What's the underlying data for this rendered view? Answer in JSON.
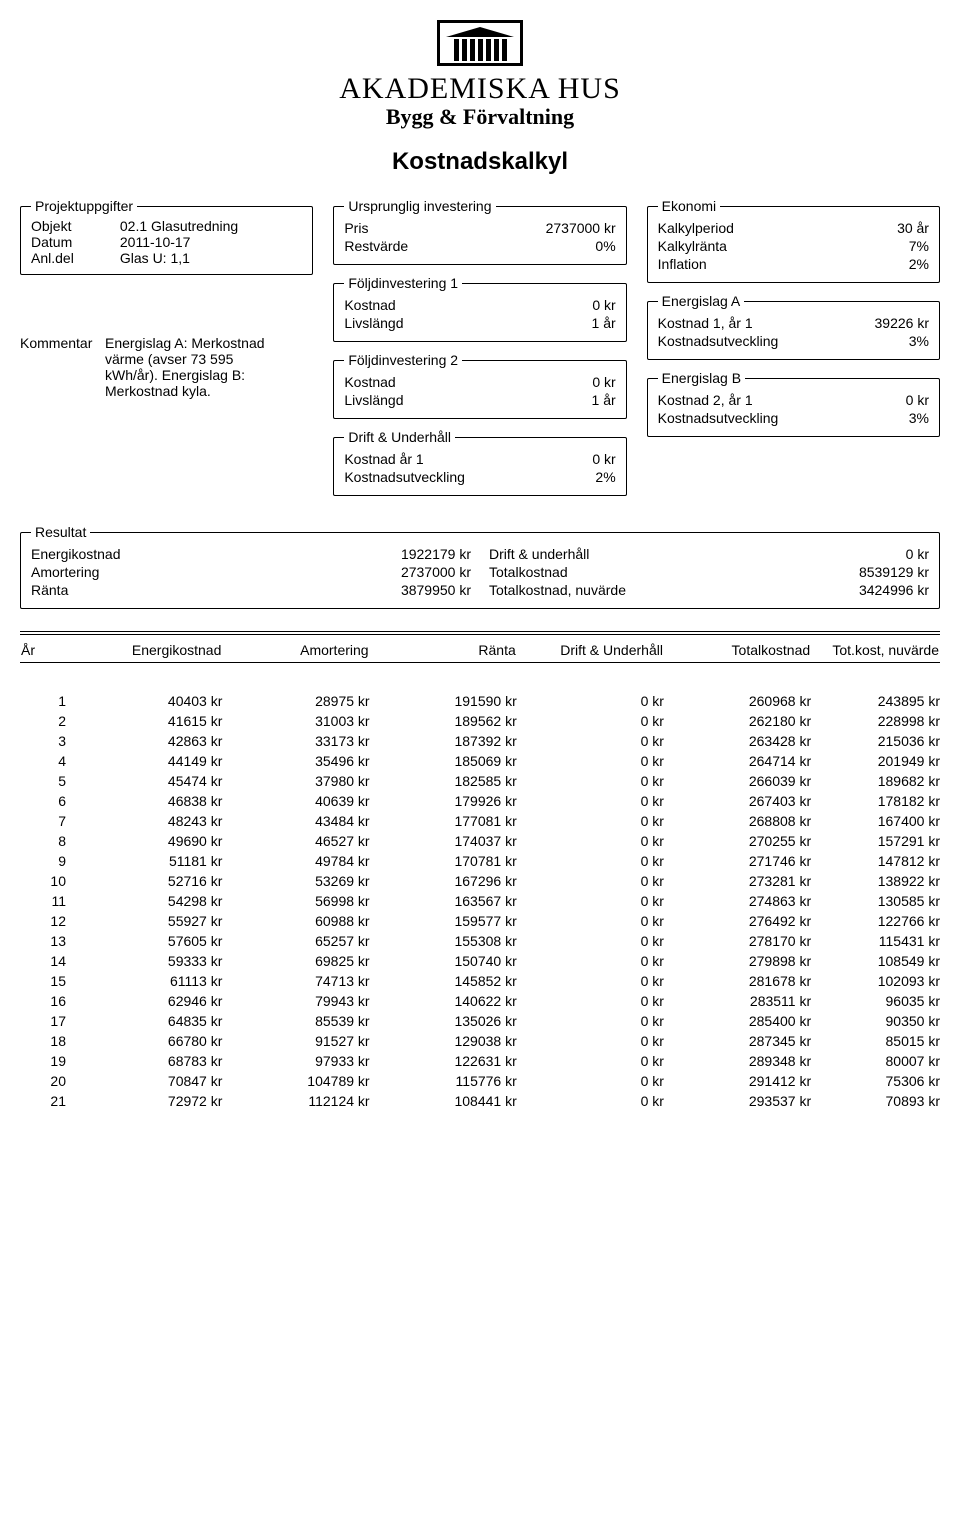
{
  "brand": {
    "name": "AKADEMISKA HUS",
    "sub": "Bygg & Förvaltning"
  },
  "title": "Kostnadskalkyl",
  "projekt": {
    "legend": "Projektuppgifter",
    "objekt_label": "Objekt",
    "objekt": "02.1 Glasutredning",
    "datum_label": "Datum",
    "datum": "2011-10-17",
    "anldel_label": "Anl.del",
    "anldel": "Glas U: 1,1",
    "kommentar_label": "Kommentar",
    "kommentar_l1": "Energislag A: Merkostnad",
    "kommentar_l2": "värme (avser 73 595",
    "kommentar_l3": "kWh/år). Energislag B:",
    "kommentar_l4": "Merkostnad kyla."
  },
  "invest": {
    "legend": "Ursprunglig investering",
    "pris_label": "Pris",
    "pris": "2737000 kr",
    "rest_label": "Restvärde",
    "rest": "0%",
    "f1_legend": "Följdinvestering 1",
    "f1_kostnad_label": "Kostnad",
    "f1_kostnad": "0 kr",
    "f1_livs_label": "Livslängd",
    "f1_livs": "1 år",
    "f2_legend": "Följdinvestering 2",
    "f2_kostnad_label": "Kostnad",
    "f2_kostnad": "0 kr",
    "f2_livs_label": "Livslängd",
    "f2_livs": "1 år",
    "du_legend": "Drift & Underhåll",
    "du_k1_label": "Kostnad år 1",
    "du_k1": "0 kr",
    "du_utv_label": "Kostnadsutveckling",
    "du_utv": "2%"
  },
  "ekonomi": {
    "legend": "Ekonomi",
    "kp_label": "Kalkylperiod",
    "kp": "30 år",
    "kr_label": "Kalkylränta",
    "kr": "7%",
    "inf_label": "Inflation",
    "inf": "2%",
    "ea_legend": "Energislag A",
    "ea_k_label": "Kostnad 1, år 1",
    "ea_k": "39226 kr",
    "ea_u_label": "Kostnadsutveckling",
    "ea_u": "3%",
    "eb_legend": "Energislag B",
    "eb_k_label": "Kostnad 2, år 1",
    "eb_k": "0 kr",
    "eb_u_label": "Kostnadsutveckling",
    "eb_u": "3%"
  },
  "resultat": {
    "legend": "Resultat",
    "en_label": "Energikostnad",
    "en": "1922179 kr",
    "am_label": "Amortering",
    "am": "2737000 kr",
    "ra_label": "Ränta",
    "ra": "3879950 kr",
    "du_label": "Drift & underhåll",
    "du": "0 kr",
    "tk_label": "Totalkostnad",
    "tk": "8539129 kr",
    "tn_label": "Totalkostnad, nuvärde",
    "tn": "3424996 kr"
  },
  "table": {
    "headers": {
      "year": "År",
      "en": "Energikostnad",
      "am": "Amortering",
      "ra": "Ränta",
      "du": "Drift & Underhåll",
      "tk": "Totalkostnad",
      "nv": "Tot.kost, nuvärde"
    },
    "rows": [
      {
        "y": "1",
        "en": "40403 kr",
        "am": "28975 kr",
        "ra": "191590 kr",
        "du": "0 kr",
        "tk": "260968 kr",
        "nv": "243895 kr"
      },
      {
        "y": "2",
        "en": "41615 kr",
        "am": "31003 kr",
        "ra": "189562 kr",
        "du": "0 kr",
        "tk": "262180 kr",
        "nv": "228998 kr"
      },
      {
        "y": "3",
        "en": "42863 kr",
        "am": "33173 kr",
        "ra": "187392 kr",
        "du": "0 kr",
        "tk": "263428 kr",
        "nv": "215036 kr"
      },
      {
        "y": "4",
        "en": "44149 kr",
        "am": "35496 kr",
        "ra": "185069 kr",
        "du": "0 kr",
        "tk": "264714 kr",
        "nv": "201949 kr"
      },
      {
        "y": "5",
        "en": "45474 kr",
        "am": "37980 kr",
        "ra": "182585 kr",
        "du": "0 kr",
        "tk": "266039 kr",
        "nv": "189682 kr"
      },
      {
        "y": "6",
        "en": "46838 kr",
        "am": "40639 kr",
        "ra": "179926 kr",
        "du": "0 kr",
        "tk": "267403 kr",
        "nv": "178182 kr"
      },
      {
        "y": "7",
        "en": "48243 kr",
        "am": "43484 kr",
        "ra": "177081 kr",
        "du": "0 kr",
        "tk": "268808 kr",
        "nv": "167400 kr"
      },
      {
        "y": "8",
        "en": "49690 kr",
        "am": "46527 kr",
        "ra": "174037 kr",
        "du": "0 kr",
        "tk": "270255 kr",
        "nv": "157291 kr"
      },
      {
        "y": "9",
        "en": "51181 kr",
        "am": "49784 kr",
        "ra": "170781 kr",
        "du": "0 kr",
        "tk": "271746 kr",
        "nv": "147812 kr"
      },
      {
        "y": "10",
        "en": "52716 kr",
        "am": "53269 kr",
        "ra": "167296 kr",
        "du": "0 kr",
        "tk": "273281 kr",
        "nv": "138922 kr"
      },
      {
        "y": "11",
        "en": "54298 kr",
        "am": "56998 kr",
        "ra": "163567 kr",
        "du": "0 kr",
        "tk": "274863 kr",
        "nv": "130585 kr"
      },
      {
        "y": "12",
        "en": "55927 kr",
        "am": "60988 kr",
        "ra": "159577 kr",
        "du": "0 kr",
        "tk": "276492 kr",
        "nv": "122766 kr"
      },
      {
        "y": "13",
        "en": "57605 kr",
        "am": "65257 kr",
        "ra": "155308 kr",
        "du": "0 kr",
        "tk": "278170 kr",
        "nv": "115431 kr"
      },
      {
        "y": "14",
        "en": "59333 kr",
        "am": "69825 kr",
        "ra": "150740 kr",
        "du": "0 kr",
        "tk": "279898 kr",
        "nv": "108549 kr"
      },
      {
        "y": "15",
        "en": "61113 kr",
        "am": "74713 kr",
        "ra": "145852 kr",
        "du": "0 kr",
        "tk": "281678 kr",
        "nv": "102093 kr"
      },
      {
        "y": "16",
        "en": "62946 kr",
        "am": "79943 kr",
        "ra": "140622 kr",
        "du": "0 kr",
        "tk": "283511 kr",
        "nv": "96035 kr"
      },
      {
        "y": "17",
        "en": "64835 kr",
        "am": "85539 kr",
        "ra": "135026 kr",
        "du": "0 kr",
        "tk": "285400 kr",
        "nv": "90350 kr"
      },
      {
        "y": "18",
        "en": "66780 kr",
        "am": "91527 kr",
        "ra": "129038 kr",
        "du": "0 kr",
        "tk": "287345 kr",
        "nv": "85015 kr"
      },
      {
        "y": "19",
        "en": "68783 kr",
        "am": "97933 kr",
        "ra": "122631 kr",
        "du": "0 kr",
        "tk": "289348 kr",
        "nv": "80007 kr"
      },
      {
        "y": "20",
        "en": "70847 kr",
        "am": "104789 kr",
        "ra": "115776 kr",
        "du": "0 kr",
        "tk": "291412 kr",
        "nv": "75306 kr"
      },
      {
        "y": "21",
        "en": "72972 kr",
        "am": "112124 kr",
        "ra": "108441 kr",
        "du": "0 kr",
        "tk": "293537 kr",
        "nv": "70893 kr"
      }
    ]
  }
}
